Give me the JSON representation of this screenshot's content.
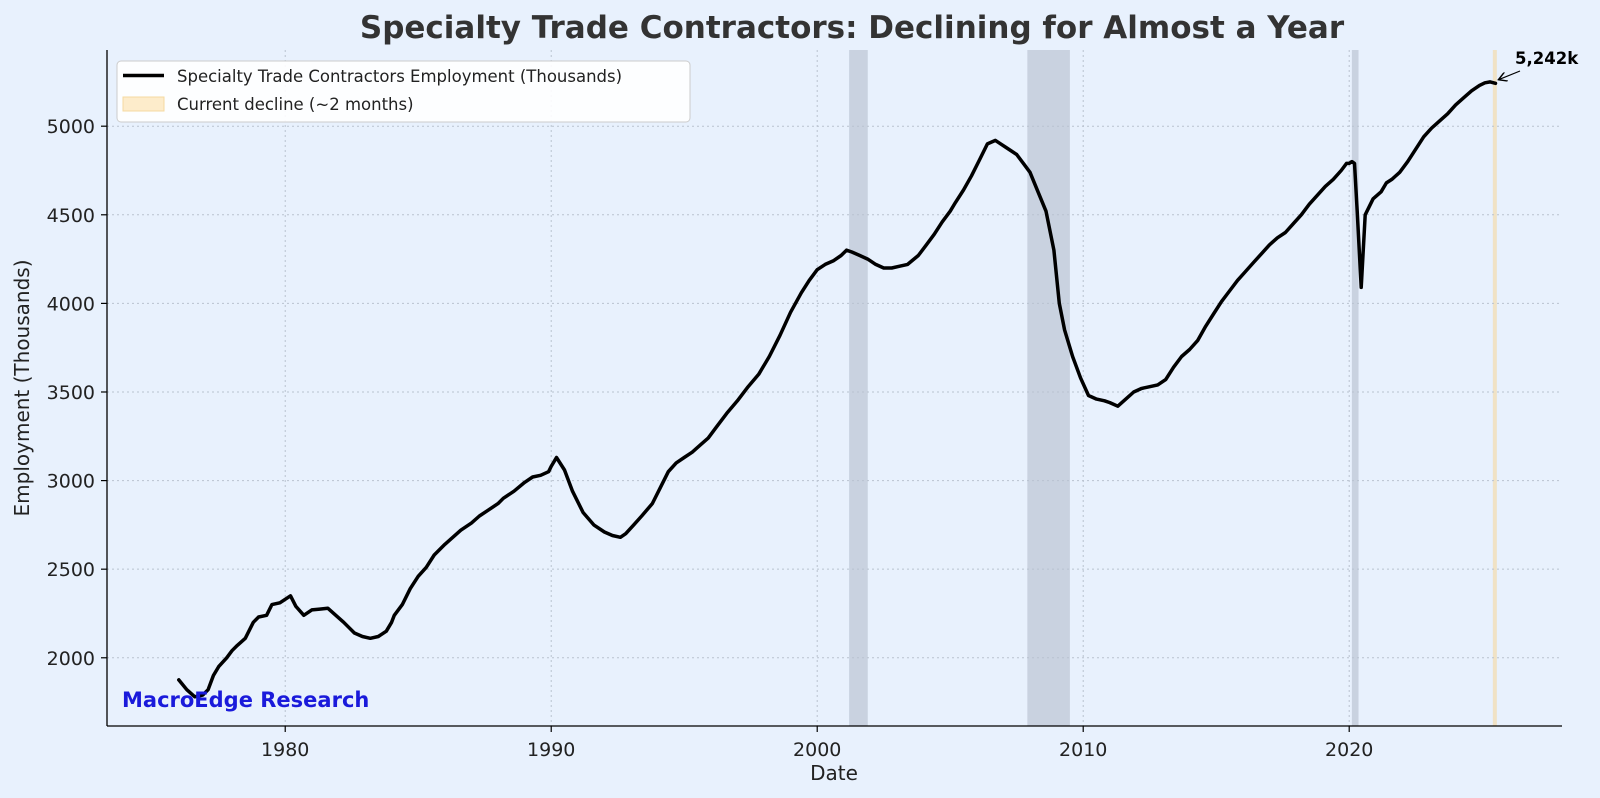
{
  "chart_data": {
    "type": "line",
    "title": "Specialty Trade Contractors: Declining for Almost a Year",
    "xlabel": "Date",
    "ylabel": "Employment (Thousands)",
    "xlim": [
      1973.3,
      2028.0
    ],
    "ylim": [
      1615,
      5430
    ],
    "xticks": [
      1980,
      1990,
      2000,
      2010,
      2020
    ],
    "yticks": [
      2000,
      2500,
      3000,
      3500,
      4000,
      4500,
      5000
    ],
    "grid": true,
    "legend_position": "top-left",
    "series": [
      {
        "name": "Specialty Trade Contractors Employment (Thousands)",
        "color": "#000000",
        "x": [
          1976.0,
          1976.3,
          1976.6,
          1976.9,
          1977.1,
          1977.3,
          1977.5,
          1977.8,
          1978.0,
          1978.2,
          1978.5,
          1978.8,
          1979.0,
          1979.3,
          1979.5,
          1979.8,
          1980.0,
          1980.2,
          1980.4,
          1980.7,
          1981.0,
          1981.3,
          1981.6,
          1981.9,
          1982.2,
          1982.4,
          1982.6,
          1982.9,
          1983.2,
          1983.5,
          1983.8,
          1984.0,
          1984.1,
          1984.4,
          1984.7,
          1985.0,
          1985.3,
          1985.6,
          1986.0,
          1986.3,
          1986.6,
          1987.0,
          1987.3,
          1987.6,
          1988.0,
          1988.2,
          1988.6,
          1989.0,
          1989.3,
          1989.6,
          1989.9,
          1990.0,
          1990.2,
          1990.5,
          1990.8,
          1991.2,
          1991.6,
          1992.0,
          1992.3,
          1992.6,
          1992.8,
          1993.1,
          1993.4,
          1993.8,
          1994.1,
          1994.4,
          1994.7,
          1995.0,
          1995.3,
          1995.6,
          1995.9,
          1996.2,
          1996.6,
          1997.0,
          1997.4,
          1997.8,
          1998.2,
          1998.6,
          1999.0,
          1999.4,
          1999.7,
          2000.0,
          2000.3,
          2000.6,
          2000.9,
          2001.1,
          2001.3,
          2001.6,
          2001.9,
          2002.2,
          2002.5,
          2002.8,
          2003.1,
          2003.4,
          2003.8,
          2004.1,
          2004.4,
          2004.7,
          2005.0,
          2005.2,
          2005.5,
          2005.8,
          2006.1,
          2006.4,
          2006.7,
          2006.9,
          2007.1,
          2007.3,
          2007.5,
          2007.8,
          2008.0,
          2008.3,
          2008.6,
          2008.9,
          2009.1,
          2009.3,
          2009.6,
          2009.9,
          2010.2,
          2010.5,
          2010.8,
          2011.0,
          2011.3,
          2011.6,
          2011.9,
          2012.2,
          2012.5,
          2012.8,
          2013.1,
          2013.4,
          2013.7,
          2014.0,
          2014.3,
          2014.6,
          2014.9,
          2015.2,
          2015.5,
          2015.8,
          2016.1,
          2016.4,
          2016.7,
          2017.0,
          2017.3,
          2017.6,
          2017.9,
          2018.2,
          2018.5,
          2018.8,
          2019.1,
          2019.4,
          2019.7,
          2019.9,
          2020.0,
          2020.1,
          2020.2,
          2020.3,
          2020.45,
          2020.6,
          2020.9,
          2021.2,
          2021.4,
          2021.6,
          2021.9,
          2022.2,
          2022.5,
          2022.8,
          2023.1,
          2023.4,
          2023.7,
          2024.0,
          2024.3,
          2024.6,
          2024.9,
          2025.1,
          2025.3,
          2025.5
        ],
        "values": [
          1875,
          1820,
          1780,
          1790,
          1820,
          1900,
          1950,
          2000,
          2040,
          2070,
          2110,
          2200,
          2230,
          2240,
          2300,
          2310,
          2330,
          2350,
          2290,
          2240,
          2270,
          2275,
          2280,
          2240,
          2200,
          2170,
          2140,
          2120,
          2110,
          2120,
          2150,
          2200,
          2240,
          2300,
          2390,
          2460,
          2510,
          2580,
          2640,
          2680,
          2720,
          2760,
          2800,
          2830,
          2870,
          2900,
          2940,
          2990,
          3020,
          3030,
          3050,
          3080,
          3130,
          3060,
          2940,
          2820,
          2750,
          2710,
          2690,
          2680,
          2700,
          2750,
          2800,
          2870,
          2960,
          3050,
          3100,
          3130,
          3160,
          3200,
          3240,
          3300,
          3380,
          3450,
          3530,
          3600,
          3700,
          3820,
          3950,
          4060,
          4130,
          4190,
          4220,
          4240,
          4270,
          4300,
          4290,
          4270,
          4250,
          4220,
          4200,
          4200,
          4210,
          4220,
          4270,
          4330,
          4390,
          4460,
          4520,
          4570,
          4640,
          4720,
          4810,
          4900,
          4920,
          4900,
          4880,
          4860,
          4840,
          4780,
          4740,
          4630,
          4520,
          4300,
          4000,
          3850,
          3700,
          3580,
          3480,
          3460,
          3450,
          3440,
          3420,
          3460,
          3500,
          3520,
          3530,
          3540,
          3570,
          3640,
          3700,
          3740,
          3790,
          3870,
          3940,
          4010,
          4070,
          4130,
          4180,
          4230,
          4280,
          4330,
          4370,
          4400,
          4450,
          4500,
          4560,
          4610,
          4660,
          4700,
          4750,
          4790,
          4790,
          4800,
          4790,
          4520,
          4090,
          4500,
          4590,
          4630,
          4680,
          4700,
          4740,
          4800,
          4870,
          4940,
          4990,
          5030,
          5070,
          5120,
          5160,
          5200,
          5230,
          5245,
          5250,
          5242
        ],
        "line_width": 3.5
      }
    ],
    "shaded_regions": [
      {
        "label": "",
        "x_start": 2001.2,
        "x_end": 2001.9,
        "color": "#aab4c4"
      },
      {
        "label": "",
        "x_start": 2007.9,
        "x_end": 2009.5,
        "color": "#aab4c4"
      },
      {
        "label": "",
        "x_start": 2020.1,
        "x_end": 2020.35,
        "color": "#aab4c4"
      },
      {
        "label": "Current decline (~2 months)",
        "x_start": 2025.4,
        "x_end": 2025.55,
        "color": "#f5d9a0"
      }
    ],
    "annotation": {
      "text": "5,242k",
      "x": 2025.5,
      "y": 5242
    },
    "watermark": {
      "text": "MacroEdge Research",
      "color": "#1a1adb"
    }
  }
}
